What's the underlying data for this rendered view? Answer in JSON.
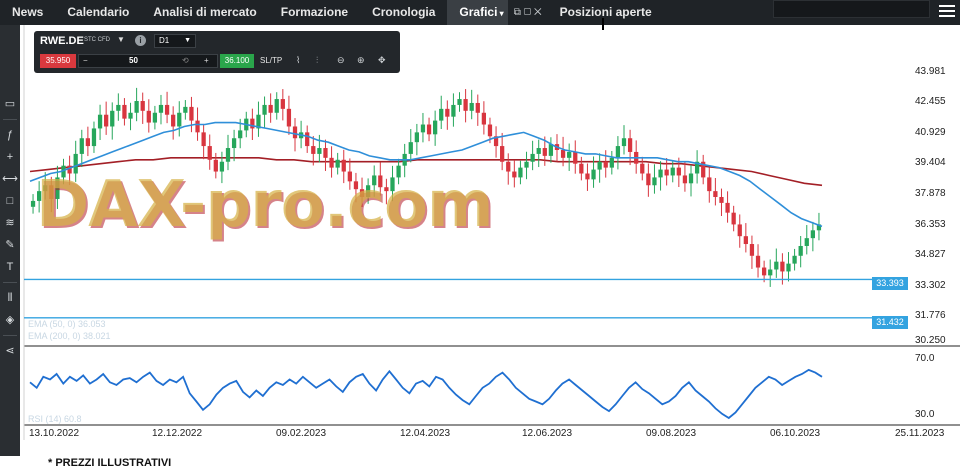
{
  "nav": {
    "tabs": [
      {
        "label": "News"
      },
      {
        "label": "Calendario"
      },
      {
        "label": "Analisi di mercato"
      },
      {
        "label": "Formazione"
      },
      {
        "label": "Cronologia"
      },
      {
        "label": "Grafici"
      },
      {
        "label": "Posizioni aperte"
      }
    ],
    "active_tab": "Grafici",
    "window_icons": "⧉ ▢ ✕"
  },
  "toolbar_icons": [
    "screen-icon",
    "fx-icon",
    "crosshair-icon",
    "hline-icon",
    "rect-icon",
    "fib-icon",
    "pen-icon",
    "text-icon",
    "candle-icon",
    "layers-icon",
    "share-icon"
  ],
  "instrument": {
    "symbol": "RWE.DE",
    "subtitle": "STC CFD",
    "timeframe": "D1",
    "sell_price": "35.950",
    "quantity": "50",
    "buy_price": "36.100",
    "sltp_label": "SL/TP"
  },
  "price_axis": [
    "43.981",
    "42.455",
    "40.929",
    "39.404",
    "37.878",
    "36.353",
    "34.827",
    "33.302",
    "31.776",
    "30.250"
  ],
  "hlines": [
    {
      "label": "33.393",
      "price": 33.393
    },
    {
      "label": "31.432",
      "price": 31.432
    }
  ],
  "legend": {
    "ema50": "EMA (50, 0) 36.053",
    "ema200": "EMA (200, 0) 38.021",
    "rsi": "RSI (14) 60.8"
  },
  "rsi_axis": [
    "70.0",
    "30.0"
  ],
  "date_axis": [
    "13.10.2022",
    "12.12.2022",
    "09.02.2023",
    "12.04.2023",
    "12.06.2023",
    "09.08.2023",
    "06.10.2023",
    "25.11.2023"
  ],
  "watermark": "DAX-pro.com",
  "footnote": "* PREZZI ILLUSTRATIVI",
  "colors": {
    "up": "#26a65b",
    "down": "#d8353f",
    "ema50": "#2f8fd9",
    "ema200": "#a31f26",
    "hline": "#33a3e0",
    "rsi": "#1f6fd1"
  },
  "chart_data": {
    "type": "candlestick",
    "closes": [
      37.4,
      37.9,
      38.2,
      37.5,
      38.6,
      39.2,
      38.8,
      39.8,
      40.6,
      40.2,
      41.1,
      41.8,
      41.2,
      42.0,
      42.3,
      41.6,
      41.9,
      42.5,
      42.0,
      41.4,
      41.9,
      42.3,
      41.8,
      41.2,
      41.9,
      42.2,
      41.5,
      40.9,
      40.2,
      39.5,
      38.9,
      39.4,
      40.1,
      40.6,
      41.0,
      41.6,
      41.1,
      41.8,
      42.3,
      41.9,
      42.6,
      42.1,
      41.2,
      40.6,
      40.9,
      40.2,
      39.8,
      40.1,
      39.6,
      39.1,
      39.5,
      38.9,
      38.4,
      38.0,
      37.6,
      38.2,
      38.7,
      38.1,
      37.9,
      38.6,
      39.2,
      39.8,
      40.4,
      40.9,
      41.3,
      40.8,
      41.5,
      42.1,
      41.7,
      42.3,
      42.6,
      42.0,
      42.4,
      41.9,
      41.3,
      40.7,
      40.2,
      39.4,
      38.9,
      38.6,
      39.1,
      39.4,
      39.8,
      40.1,
      39.7,
      40.3,
      40.0,
      39.6,
      39.9,
      39.3,
      38.8,
      38.5,
      39.0,
      39.4,
      39.1,
      39.6,
      40.2,
      40.6,
      39.9,
      39.3,
      38.8,
      38.2,
      38.6,
      39.0,
      38.7,
      39.1,
      38.7,
      38.3,
      38.8,
      39.4,
      38.6,
      37.9,
      37.6,
      37.3,
      36.8,
      36.2,
      35.6,
      35.2,
      34.6,
      34.0,
      33.6,
      33.9,
      34.3,
      33.8,
      34.2,
      34.6,
      35.1,
      35.5,
      35.9,
      36.2
    ],
    "ema50_values": [
      38.4,
      38.6,
      38.8,
      38.9,
      39.1,
      39.3,
      39.5,
      39.7,
      39.9,
      40.1,
      40.3,
      40.5,
      40.7,
      40.9,
      41.0,
      41.2,
      41.3,
      41.3,
      41.4,
      41.4,
      41.4,
      41.3,
      41.2,
      41.1,
      41.0,
      40.9,
      40.8,
      40.7,
      40.5,
      40.4,
      40.2,
      40.0,
      39.9,
      39.7,
      39.6,
      39.5,
      39.5,
      39.5,
      39.6,
      39.7,
      39.8,
      39.9,
      40.0,
      40.2,
      40.4,
      40.6,
      40.7,
      40.8,
      40.9,
      40.7,
      40.5,
      40.2,
      40.0,
      39.9,
      39.8,
      39.8,
      39.7,
      39.6,
      39.6,
      39.6,
      39.6,
      39.6,
      39.5,
      39.4,
      39.4,
      39.3,
      39.2,
      39.1,
      38.9,
      38.7,
      38.4,
      38.0,
      37.6,
      37.2,
      36.8,
      36.5,
      36.3,
      36.1
    ],
    "ema200_values": [
      38.9,
      39.0,
      39.1,
      39.2,
      39.3,
      39.4,
      39.5,
      39.5,
      39.6,
      39.6,
      39.6,
      39.6,
      39.6,
      39.6,
      39.5,
      39.5,
      39.4,
      39.4,
      39.4,
      39.4,
      39.4,
      39.4,
      39.5,
      39.5,
      39.5,
      39.5,
      39.5,
      39.5,
      39.5,
      39.5,
      39.4,
      39.4,
      39.4,
      39.4,
      39.4,
      39.4,
      39.3,
      39.3,
      39.2,
      39.1,
      39.0,
      38.9,
      38.7,
      38.5,
      38.3,
      38.2
    ],
    "rsi_values": [
      56,
      52,
      60,
      58,
      62,
      55,
      60,
      57,
      61,
      55,
      58,
      62,
      56,
      54,
      58,
      59,
      56,
      60,
      63,
      57,
      54,
      58,
      56,
      60,
      48,
      42,
      36,
      40,
      47,
      52,
      55,
      57,
      49,
      45,
      50,
      46,
      52,
      56,
      54,
      58,
      55,
      60,
      56,
      52,
      55,
      58,
      53,
      49,
      56,
      60,
      62,
      55,
      50,
      58,
      64,
      58,
      52,
      48,
      55,
      57,
      53,
      60,
      58,
      52,
      47,
      43,
      40,
      46,
      52,
      55,
      60,
      63,
      58,
      52,
      48,
      44,
      42,
      40,
      44,
      50,
      55,
      58,
      54,
      50,
      46,
      42,
      38,
      35,
      40,
      46,
      52,
      56,
      51,
      48,
      44,
      40,
      42,
      46,
      52,
      56,
      50,
      46,
      42,
      37,
      33,
      30,
      34,
      40,
      46,
      52,
      56,
      60,
      58,
      54,
      57,
      60,
      62,
      65,
      63,
      60
    ],
    "ylim": [
      30.25,
      43.981
    ],
    "rsi_ylim": [
      30,
      70
    ]
  }
}
